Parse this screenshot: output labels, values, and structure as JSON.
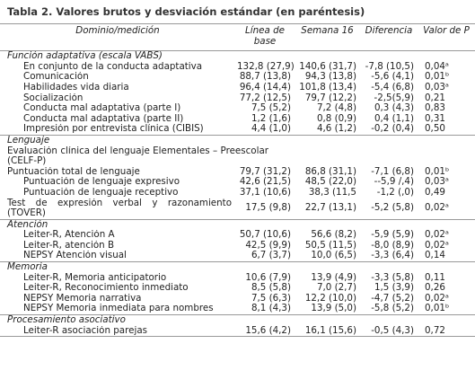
{
  "title": "Tabla 2. Valores brutos y desviación estándar (en paréntesis)",
  "table": {
    "header": [
      "Dominio/medición",
      "Línea de base",
      "Semana 16",
      "Diferencia",
      "Valor de P"
    ],
    "sections": [
      {
        "title": "Función adaptativa (escala VABS)",
        "rows": [
          [
            "En conjunto de la conducta adaptativa",
            "132,8 (27,9)",
            "140,6 (31,7)",
            "-7,8 (10,5)",
            "0,04ᵃ"
          ],
          [
            "Comunicación",
            "88,7 (13,8)",
            "94,3 (13,8)",
            "-5,6 (4,1)",
            "0,01ᵇ"
          ],
          [
            "Habilidades vida diaria",
            "96,4 (14,4)",
            "101,8 (13,4)",
            "-5,4 (6,8)",
            "0,03ᵃ"
          ],
          [
            "Socialización",
            "77,2 (12,5)",
            "79,7 (12,2)",
            "-2,5(5,9)",
            "0,21"
          ],
          [
            "Conducta mal adaptativa (parte I)",
            "7,5 (5,2)",
            "7,2 (4,8)",
            "0,3 (4,3)",
            "0,83"
          ],
          [
            "Conducta mal adaptativa (parte II)",
            "1,2 (1,6)",
            "0,8 (0,9)",
            "0,4 (1,1)",
            "0,31"
          ],
          [
            "Impresión por entrevista clínica (CIBIS)",
            "4,4 (1,0)",
            "4,6 (1,2)",
            "-0,2 (0,4)",
            "0,50"
          ]
        ]
      },
      {
        "title": "Lenguaje",
        "rows": [
          [
            "Evaluación clínica del lenguaje Elementales – Preescolar (CELF-P)"
          ],
          [
            "Puntuación total de lenguaje",
            "79,7 (31,2)",
            "86,8 (31,1)",
            "-7,1 (6,8)",
            "0,01ᵇ"
          ],
          [
            "Puntuación de lenguaje expresivo",
            "42,6 (21,5)",
            "48,5 (22,0)",
            "--5,9 /,4)",
            "0,03ᵃ"
          ],
          [
            "Puntuación de lenguaje receptivo",
            "37,1 (10,6)",
            "38,3 (11,5",
            "-1,2 (,0)",
            "0,49"
          ],
          [
            "Test de expresión verbal y razonamiento (TOVER)",
            "17,5 (9,8)",
            "22,7 (13,1)",
            "-5,2 (5,8)",
            "0,02ᵃ"
          ]
        ]
      },
      {
        "title": "Atención",
        "rows": [
          [
            "Leiter-R, Atención A",
            "50,7 (10,6)",
            "56,6 (8,2)",
            "-5,9 (5,9)",
            "0,02ᵃ"
          ],
          [
            "Leiter-R, atención B",
            "42,5 (9,9)",
            "50,5 (11,5)",
            "-8,0 (8,9)",
            "0,02ᵃ"
          ],
          [
            "NEPSY Atención visual",
            "6,7 (3,7)",
            "10,0 (6,5)",
            "-3,3 (6,4)",
            "0,14"
          ]
        ]
      },
      {
        "title": "Memoria",
        "rows": [
          [
            "Leiter-R, Memoria anticipatorio",
            "10,6 (7,9)",
            "13,9 (4,9)",
            "-3,3 (5,8)",
            "0,11"
          ],
          [
            "Leiter-R, Reconocimiento inmediato",
            "8,5 (5,8)",
            "7,0 (2,7)",
            "1,5 (3,9)",
            "0,26"
          ],
          [
            "NEPSY Memoria narrativa",
            "7,5 (6,3)",
            "12,2 (10,0)",
            "-4,7 (5,2)",
            "0,02ᵃ"
          ],
          [
            "NEPSY Memoria inmediata para nombres",
            "8,1 (4,3)",
            "13,9 (5,0)",
            "-5,8 (5,2)",
            "0,01ᵇ"
          ]
        ]
      },
      {
        "title": "Procesamiento asociativo",
        "rows": [
          [
            "Leiter-R asociación parejas",
            "15,6 (4,2)",
            "16,1 (15,6)",
            "-0,5 (4,3)",
            "0,72"
          ]
        ]
      }
    ]
  }
}
